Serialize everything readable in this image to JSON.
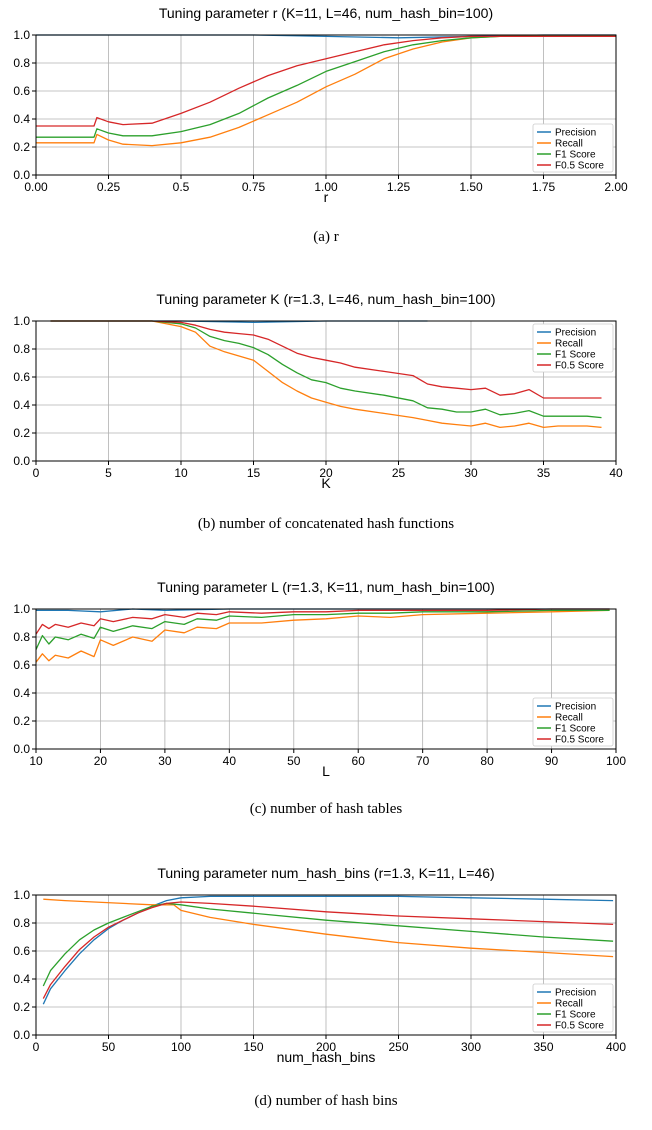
{
  "colors": {
    "precision": "#1f77b4",
    "recall": "#ff7f0e",
    "f1": "#2ca02c",
    "f05": "#d62728",
    "grid": "#b0b0b0"
  },
  "legend_labels": [
    "Precision",
    "Recall",
    "F1 Score",
    "F0.5 Score"
  ],
  "captions": [
    "(a)  r",
    "(b)  number of concatenated hash functions",
    "(c)  number of hash tables",
    "(d)  number of hash bins"
  ],
  "chart_data": [
    {
      "type": "line",
      "title": "Tuning parameter r (K=11, L=46, num_hash_bin=100)",
      "xlabel": "r",
      "ylabel": "",
      "xlim": [
        0,
        2
      ],
      "ylim": [
        0,
        1
      ],
      "xticks": [
        "0.00",
        "0.25",
        "0.5",
        "0.75",
        "1.00",
        "1.25",
        "1.50",
        "1.75",
        "2.00"
      ],
      "yticks": [
        "0.0",
        "0.2",
        "0.4",
        "0.6",
        "0.8",
        "1.0"
      ],
      "grid": true,
      "legend": "bottom-right",
      "series": [
        {
          "name": "Precision",
          "x": [
            0,
            0.25,
            0.5,
            0.75,
            1.0,
            1.25,
            1.5,
            1.75,
            2.0
          ],
          "values": [
            1.0,
            1.0,
            1.0,
            1.0,
            0.99,
            0.98,
            0.99,
            1.0,
            1.0
          ]
        },
        {
          "name": "Recall",
          "x": [
            0,
            0.2,
            0.21,
            0.25,
            0.3,
            0.4,
            0.5,
            0.6,
            0.7,
            0.8,
            0.9,
            1.0,
            1.1,
            1.2,
            1.3,
            1.4,
            1.5,
            1.6,
            1.7,
            1.8,
            2.0
          ],
          "values": [
            0.23,
            0.23,
            0.29,
            0.25,
            0.22,
            0.21,
            0.23,
            0.27,
            0.34,
            0.43,
            0.52,
            0.63,
            0.72,
            0.83,
            0.9,
            0.95,
            0.98,
            0.99,
            0.99,
            0.99,
            0.99
          ]
        },
        {
          "name": "F1 Score",
          "x": [
            0,
            0.2,
            0.21,
            0.25,
            0.3,
            0.4,
            0.5,
            0.6,
            0.7,
            0.8,
            0.9,
            1.0,
            1.1,
            1.2,
            1.3,
            1.4,
            1.5,
            1.6,
            1.7,
            1.8,
            2.0
          ],
          "values": [
            0.27,
            0.27,
            0.33,
            0.3,
            0.28,
            0.28,
            0.31,
            0.36,
            0.44,
            0.55,
            0.64,
            0.74,
            0.81,
            0.88,
            0.93,
            0.96,
            0.98,
            0.99,
            0.99,
            0.99,
            0.99
          ]
        },
        {
          "name": "F0.5 Score",
          "x": [
            0,
            0.2,
            0.21,
            0.25,
            0.3,
            0.4,
            0.5,
            0.6,
            0.7,
            0.8,
            0.9,
            1.0,
            1.1,
            1.2,
            1.3,
            1.4,
            1.5,
            1.6,
            1.7,
            1.8,
            2.0
          ],
          "values": [
            0.35,
            0.35,
            0.41,
            0.38,
            0.36,
            0.37,
            0.44,
            0.52,
            0.62,
            0.71,
            0.78,
            0.83,
            0.88,
            0.93,
            0.96,
            0.98,
            0.99,
            0.99,
            0.99,
            0.99,
            0.99
          ]
        }
      ]
    },
    {
      "type": "line",
      "title": "Tuning parameter K (r=1.3, L=46, num_hash_bin=100)",
      "xlabel": "K",
      "ylabel": "",
      "xlim": [
        0,
        40
      ],
      "ylim": [
        0,
        1
      ],
      "xticks": [
        "0",
        "5",
        "10",
        "15",
        "20",
        "25",
        "30",
        "35",
        "40"
      ],
      "yticks": [
        "0.0",
        "0.2",
        "0.4",
        "0.6",
        "0.8",
        "1.0"
      ],
      "grid": true,
      "legend": "top-right",
      "series": [
        {
          "name": "Precision",
          "x": [
            1,
            10,
            15,
            20,
            25,
            27
          ],
          "values": [
            1.0,
            1.0,
            0.99,
            1.0,
            1.0,
            1.0
          ]
        },
        {
          "name": "Recall",
          "x": [
            1,
            8,
            10,
            11,
            12,
            13,
            14,
            15,
            16,
            17,
            18,
            19,
            20,
            21,
            22,
            24,
            26,
            27,
            28,
            29,
            30,
            31,
            32,
            33,
            34,
            35,
            36,
            37,
            38,
            39
          ],
          "values": [
            1.0,
            1.0,
            0.96,
            0.92,
            0.82,
            0.78,
            0.75,
            0.72,
            0.64,
            0.56,
            0.5,
            0.45,
            0.42,
            0.39,
            0.37,
            0.34,
            0.31,
            0.29,
            0.27,
            0.26,
            0.25,
            0.27,
            0.24,
            0.25,
            0.27,
            0.24,
            0.25,
            0.25,
            0.25,
            0.24
          ]
        },
        {
          "name": "F1 Score",
          "x": [
            1,
            8,
            10,
            11,
            12,
            13,
            14,
            15,
            16,
            17,
            18,
            19,
            20,
            21,
            22,
            24,
            26,
            27,
            28,
            29,
            30,
            31,
            32,
            33,
            34,
            35,
            36,
            37,
            38,
            39
          ],
          "values": [
            1.0,
            1.0,
            0.98,
            0.95,
            0.89,
            0.86,
            0.84,
            0.81,
            0.76,
            0.69,
            0.63,
            0.58,
            0.56,
            0.52,
            0.5,
            0.47,
            0.43,
            0.38,
            0.37,
            0.35,
            0.35,
            0.37,
            0.33,
            0.34,
            0.36,
            0.32,
            0.32,
            0.32,
            0.32,
            0.31
          ]
        },
        {
          "name": "F0.5 Score",
          "x": [
            1,
            8,
            10,
            11,
            12,
            13,
            14,
            15,
            16,
            17,
            18,
            19,
            20,
            21,
            22,
            24,
            26,
            27,
            28,
            29,
            30,
            31,
            32,
            33,
            34,
            35,
            36,
            37,
            38,
            39
          ],
          "values": [
            1.0,
            1.0,
            0.99,
            0.97,
            0.94,
            0.92,
            0.91,
            0.9,
            0.87,
            0.82,
            0.77,
            0.74,
            0.72,
            0.7,
            0.67,
            0.64,
            0.61,
            0.55,
            0.53,
            0.52,
            0.51,
            0.52,
            0.47,
            0.48,
            0.51,
            0.45,
            0.45,
            0.45,
            0.45,
            0.45
          ]
        }
      ]
    },
    {
      "type": "line",
      "title": "Tuning parameter L (r=1.3, K=11, num_hash_bin=100)",
      "xlabel": "L",
      "ylabel": "",
      "xlim": [
        10,
        100
      ],
      "ylim": [
        0,
        1
      ],
      "xticks": [
        "10",
        "20",
        "30",
        "40",
        "50",
        "60",
        "70",
        "80",
        "90",
        "100"
      ],
      "yticks": [
        "0.0",
        "0.2",
        "0.4",
        "0.6",
        "0.8",
        "1.0"
      ],
      "grid": true,
      "legend": "bottom-right",
      "series": [
        {
          "name": "Precision",
          "x": [
            10,
            15,
            20,
            25,
            30,
            40,
            50,
            60,
            70,
            80,
            90,
            99
          ],
          "values": [
            0.99,
            0.99,
            0.98,
            1.0,
            0.99,
            1.0,
            1.0,
            1.0,
            1.0,
            1.0,
            1.0,
            1.0
          ]
        },
        {
          "name": "Recall",
          "x": [
            10,
            11,
            12,
            13,
            15,
            17,
            19,
            20,
            22,
            25,
            28,
            30,
            33,
            35,
            38,
            40,
            45,
            50,
            55,
            60,
            65,
            70,
            80,
            90,
            99
          ],
          "values": [
            0.62,
            0.68,
            0.63,
            0.67,
            0.65,
            0.7,
            0.66,
            0.78,
            0.74,
            0.8,
            0.77,
            0.85,
            0.83,
            0.87,
            0.86,
            0.9,
            0.9,
            0.92,
            0.93,
            0.95,
            0.94,
            0.96,
            0.97,
            0.98,
            0.99
          ]
        },
        {
          "name": "F1 Score",
          "x": [
            10,
            11,
            12,
            13,
            15,
            17,
            19,
            20,
            22,
            25,
            28,
            30,
            33,
            35,
            38,
            40,
            45,
            50,
            55,
            60,
            65,
            70,
            80,
            90,
            99
          ],
          "values": [
            0.71,
            0.81,
            0.75,
            0.8,
            0.78,
            0.82,
            0.79,
            0.87,
            0.84,
            0.88,
            0.86,
            0.91,
            0.89,
            0.93,
            0.92,
            0.95,
            0.94,
            0.96,
            0.96,
            0.97,
            0.97,
            0.98,
            0.98,
            0.99,
            0.99
          ]
        },
        {
          "name": "F0.5 Score",
          "x": [
            10,
            11,
            12,
            13,
            15,
            17,
            19,
            20,
            22,
            25,
            28,
            30,
            33,
            35,
            38,
            40,
            45,
            50,
            55,
            60,
            65,
            70,
            80,
            90,
            99
          ],
          "values": [
            0.82,
            0.89,
            0.86,
            0.89,
            0.87,
            0.9,
            0.88,
            0.93,
            0.91,
            0.94,
            0.93,
            0.96,
            0.94,
            0.97,
            0.96,
            0.98,
            0.97,
            0.98,
            0.98,
            0.99,
            0.99,
            0.99,
            0.99,
            1.0,
            1.0
          ]
        }
      ]
    },
    {
      "type": "line",
      "title": "Tuning parameter num_hash_bins (r=1.3, K=11, L=46)",
      "xlabel": "num_hash_bins",
      "ylabel": "",
      "xlim": [
        0,
        400
      ],
      "ylim": [
        0,
        1
      ],
      "xticks": [
        "0",
        "50",
        "100",
        "150",
        "200",
        "250",
        "300",
        "350",
        "400"
      ],
      "yticks": [
        "0.0",
        "0.2",
        "0.4",
        "0.6",
        "0.8",
        "1.0"
      ],
      "grid": true,
      "legend": "bottom-right",
      "series": [
        {
          "name": "Precision",
          "x": [
            5,
            10,
            20,
            30,
            40,
            50,
            60,
            70,
            80,
            90,
            100,
            120,
            150,
            200,
            250,
            300,
            350,
            398
          ],
          "values": [
            0.22,
            0.33,
            0.46,
            0.58,
            0.68,
            0.76,
            0.82,
            0.87,
            0.92,
            0.96,
            0.98,
            0.99,
            0.99,
            0.99,
            0.99,
            0.98,
            0.97,
            0.96
          ]
        },
        {
          "name": "Recall",
          "x": [
            5,
            20,
            40,
            60,
            80,
            95,
            100,
            120,
            150,
            200,
            250,
            300,
            350,
            398
          ],
          "values": [
            0.97,
            0.96,
            0.95,
            0.94,
            0.93,
            0.93,
            0.89,
            0.84,
            0.79,
            0.72,
            0.66,
            0.62,
            0.59,
            0.56
          ]
        },
        {
          "name": "F1 Score",
          "x": [
            5,
            10,
            20,
            30,
            40,
            50,
            60,
            70,
            80,
            90,
            100,
            120,
            150,
            200,
            250,
            300,
            350,
            398
          ],
          "values": [
            0.35,
            0.46,
            0.58,
            0.68,
            0.75,
            0.8,
            0.84,
            0.88,
            0.92,
            0.94,
            0.93,
            0.9,
            0.87,
            0.82,
            0.78,
            0.74,
            0.7,
            0.67
          ]
        },
        {
          "name": "F0.5 Score",
          "x": [
            5,
            10,
            20,
            30,
            40,
            50,
            60,
            70,
            80,
            90,
            100,
            120,
            150,
            200,
            250,
            300,
            350,
            398
          ],
          "values": [
            0.26,
            0.36,
            0.49,
            0.61,
            0.7,
            0.77,
            0.82,
            0.87,
            0.91,
            0.94,
            0.95,
            0.94,
            0.92,
            0.88,
            0.85,
            0.83,
            0.81,
            0.79
          ]
        }
      ]
    }
  ]
}
